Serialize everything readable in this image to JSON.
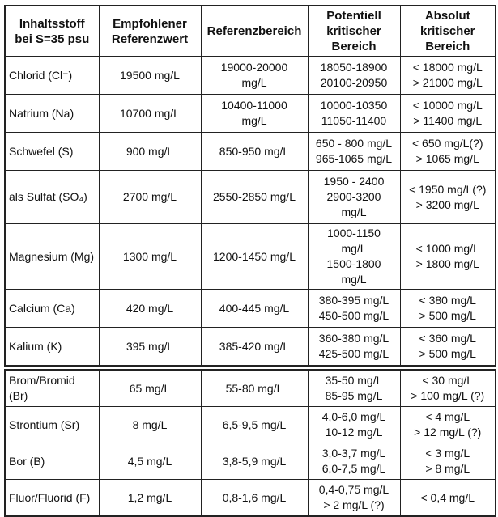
{
  "table": {
    "headers": [
      "Inhaltsstoff\nbei S=35 psu",
      "Empfohlener\nReferenzwert",
      "Referenzbereich",
      "Potentiell\nkritischer\nBereich",
      "Absolut\nkritischer\nBereich"
    ],
    "sections": [
      {
        "rows": [
          [
            "Chlorid (Cl⁻)",
            "19500 mg/L",
            "19000-20000\nmg/L",
            "18050-18900\n20100-20950",
            "< 18000 mg/L\n> 21000 mg/L"
          ],
          [
            "Natrium (Na)",
            "10700 mg/L",
            "10400-11000\nmg/L",
            "10000-10350\n11050-11400",
            "< 10000 mg/L\n> 11400 mg/L"
          ],
          [
            "Schwefel (S)",
            "900 mg/L",
            "850-950 mg/L",
            "650 - 800 mg/L\n965-1065 mg/L",
            "< 650 mg/L(?)\n> 1065 mg/L"
          ],
          [
            "als Sulfat (SO₄)",
            "2700 mg/L",
            "2550-2850 mg/L",
            "1950 - 2400\n2900-3200\nmg/L",
            "< 1950 mg/L(?)\n> 3200 mg/L"
          ],
          [
            "Magnesium (Mg)",
            "1300 mg/L",
            "1200-1450 mg/L",
            "1000-1150\nmg/L\n1500-1800\nmg/L",
            "< 1000 mg/L\n> 1800 mg/L"
          ],
          [
            "Calcium (Ca)",
            "420 mg/L",
            "400-445 mg/L",
            "380-395 mg/L\n450-500 mg/L",
            "< 380 mg/L\n> 500 mg/L"
          ],
          [
            "Kalium (K)",
            "395 mg/L",
            "385-420 mg/L",
            "360-380 mg/L\n425-500 mg/L",
            "< 360 mg/L\n> 500 mg/L"
          ]
        ]
      },
      {
        "rows": [
          [
            "Brom/Bromid\n(Br)",
            "65 mg/L",
            "55-80 mg/L",
            "35-50 mg/L\n85-95 mg/L",
            "< 30 mg/L\n> 100 mg/L (?)"
          ],
          [
            "Strontium (Sr)",
            "8 mg/L",
            "6,5-9,5 mg/L",
            "4,0-6,0 mg/L\n10-12 mg/L",
            "< 4 mg/L\n> 12 mg/L (?)"
          ],
          [
            "Bor (B)",
            "4,5 mg/L",
            "3,8-5,9 mg/L",
            "3,0-3,7 mg/L\n6,0-7,5 mg/L",
            "< 3 mg/L\n> 8 mg/L"
          ],
          [
            "Fluor/Fluorid (F)",
            "1,2 mg/L",
            "0,8-1,6 mg/L",
            "0,4-0,75 mg/L\n> 2 mg/L (?)",
            "< 0,4 mg/L"
          ]
        ]
      }
    ]
  }
}
